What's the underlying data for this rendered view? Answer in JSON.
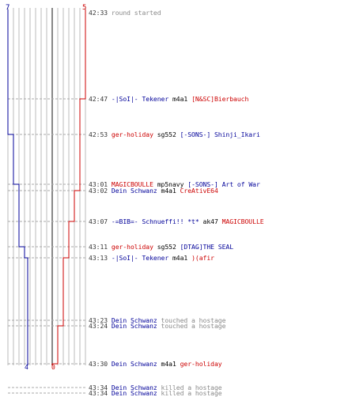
{
  "score": {
    "blue_top": "7",
    "red_top": "5",
    "blue_bottom": "4",
    "red_bottom": "0"
  },
  "colors": {
    "blue": "#000099",
    "red": "#cc0000",
    "grid": "#bbbbbb",
    "center": "#888888",
    "dash": "#aaaaaa"
  },
  "events": [
    {
      "time": "42:33",
      "parts": [
        {
          "c": "grey",
          "t": "round started"
        }
      ]
    },
    {
      "time": "42:47",
      "parts": [
        {
          "c": "blue",
          "t": "-|SoI|- Tekener"
        },
        {
          "c": "blk",
          "t": " m4a1 "
        },
        {
          "c": "red",
          "t": "[N&SC]Bierbauch"
        }
      ]
    },
    {
      "time": "42:53",
      "parts": [
        {
          "c": "red",
          "t": "ger-holiday"
        },
        {
          "c": "blk",
          "t": " sg552 "
        },
        {
          "c": "blue",
          "t": "[-SONS-] Shinji_Ikari"
        }
      ]
    },
    {
      "time": "43:01",
      "parts": [
        {
          "c": "red",
          "t": "MAGICBOULLE"
        },
        {
          "c": "blk",
          "t": " mp5navy "
        },
        {
          "c": "blue",
          "t": "[-SONS-] Art of War"
        }
      ]
    },
    {
      "time": "43:02",
      "parts": [
        {
          "c": "blue",
          "t": "Dein Schwanz"
        },
        {
          "c": "blk",
          "t": " m4a1 "
        },
        {
          "c": "red",
          "t": "CreAtivE64"
        }
      ]
    },
    {
      "time": "43:07",
      "parts": [
        {
          "c": "blue",
          "t": "-=BIB=- Schnueffi!! *t*"
        },
        {
          "c": "blk",
          "t": " ak47 "
        },
        {
          "c": "red",
          "t": "MAGICBOULLE"
        }
      ]
    },
    {
      "time": "43:11",
      "parts": [
        {
          "c": "red",
          "t": "ger-holiday"
        },
        {
          "c": "blk",
          "t": " sg552 "
        },
        {
          "c": "blue",
          "t": "[DTAG]THE SEAL"
        }
      ]
    },
    {
      "time": "43:13",
      "parts": [
        {
          "c": "blue",
          "t": "-|SoI|- Tekener"
        },
        {
          "c": "blk",
          "t": " m4a1 "
        },
        {
          "c": "red",
          "t": ")(afir"
        }
      ]
    },
    {
      "time": "43:23",
      "parts": [
        {
          "c": "blue",
          "t": "Dein Schwanz"
        },
        {
          "c": "grey",
          "t": " touched a hostage"
        }
      ]
    },
    {
      "time": "43:24",
      "parts": [
        {
          "c": "blue",
          "t": "Dein Schwanz"
        },
        {
          "c": "grey",
          "t": " touched a hostage"
        }
      ]
    },
    {
      "time": "43:30",
      "parts": [
        {
          "c": "blue",
          "t": "Dein Schwanz"
        },
        {
          "c": "blk",
          "t": " m4a1 "
        },
        {
          "c": "red",
          "t": "ger-holiday"
        }
      ]
    },
    {
      "time": "43:34",
      "parts": [
        {
          "c": "blue",
          "t": "Dein Schwanz"
        },
        {
          "c": "grey",
          "t": " killed a hostage"
        }
      ]
    },
    {
      "time": "43:34",
      "parts": [
        {
          "c": "blue",
          "t": "Dein Schwanz"
        },
        {
          "c": "grey",
          "t": " killed a hostage"
        }
      ]
    }
  ]
}
